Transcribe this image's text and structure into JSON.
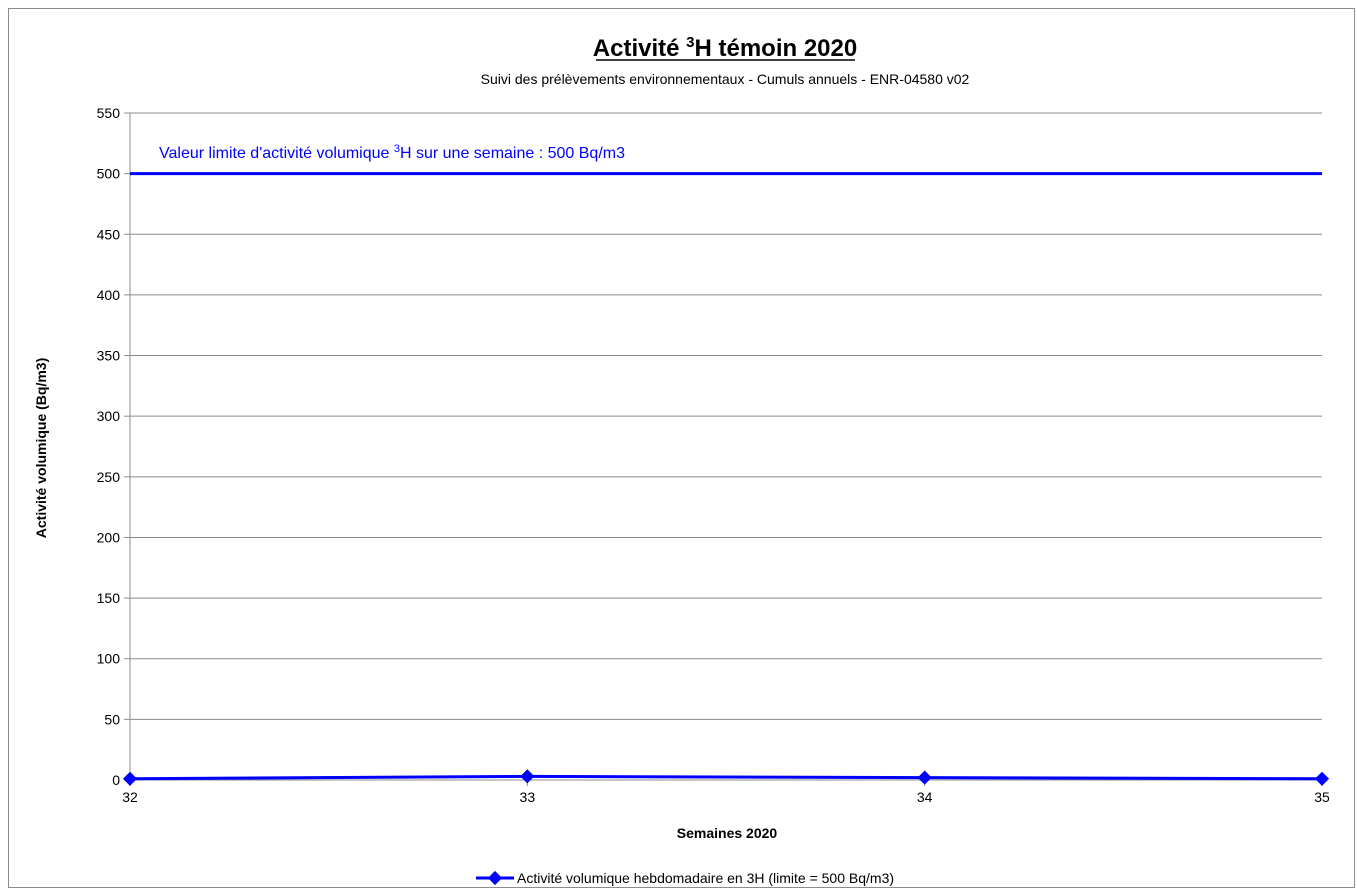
{
  "chart_data": {
    "type": "line",
    "title": {
      "prefix": "Activité ",
      "superscript": "3",
      "suffix": "H témoin 2020"
    },
    "subtitle": "Suivi des prélèvements environnementaux - Cumuls annuels - ENR-04580 v02",
    "xlabel": "Semaines 2020",
    "ylabel": "Activité volumique (Bq/m3)",
    "x": [
      32,
      33,
      34,
      35
    ],
    "x_tick_labels": [
      "32",
      "33",
      "34",
      "35"
    ],
    "ylim": [
      0,
      550
    ],
    "y_ticks": [
      0,
      50,
      100,
      150,
      200,
      250,
      300,
      350,
      400,
      450,
      500,
      550
    ],
    "y_tick_labels": [
      "0",
      "50",
      "100",
      "150",
      "200",
      "250",
      "300",
      "350",
      "400",
      "450",
      "500",
      "550"
    ],
    "grid": "horizontal",
    "legend_position": "bottom",
    "series": [
      {
        "name": "Activité volumique hebdomadaire en 3H  (limite = 500 Bq/m3)",
        "values": [
          1,
          3,
          2,
          1
        ],
        "color": "#0000ff",
        "marker": "diamond"
      }
    ],
    "limit_line": {
      "value": 500,
      "color": "#0000ff",
      "label": {
        "prefix": "Valeur limite d'activité volumique ",
        "superscript": "3",
        "suffix": "H  sur une semaine : 500 Bq/m3"
      }
    }
  }
}
